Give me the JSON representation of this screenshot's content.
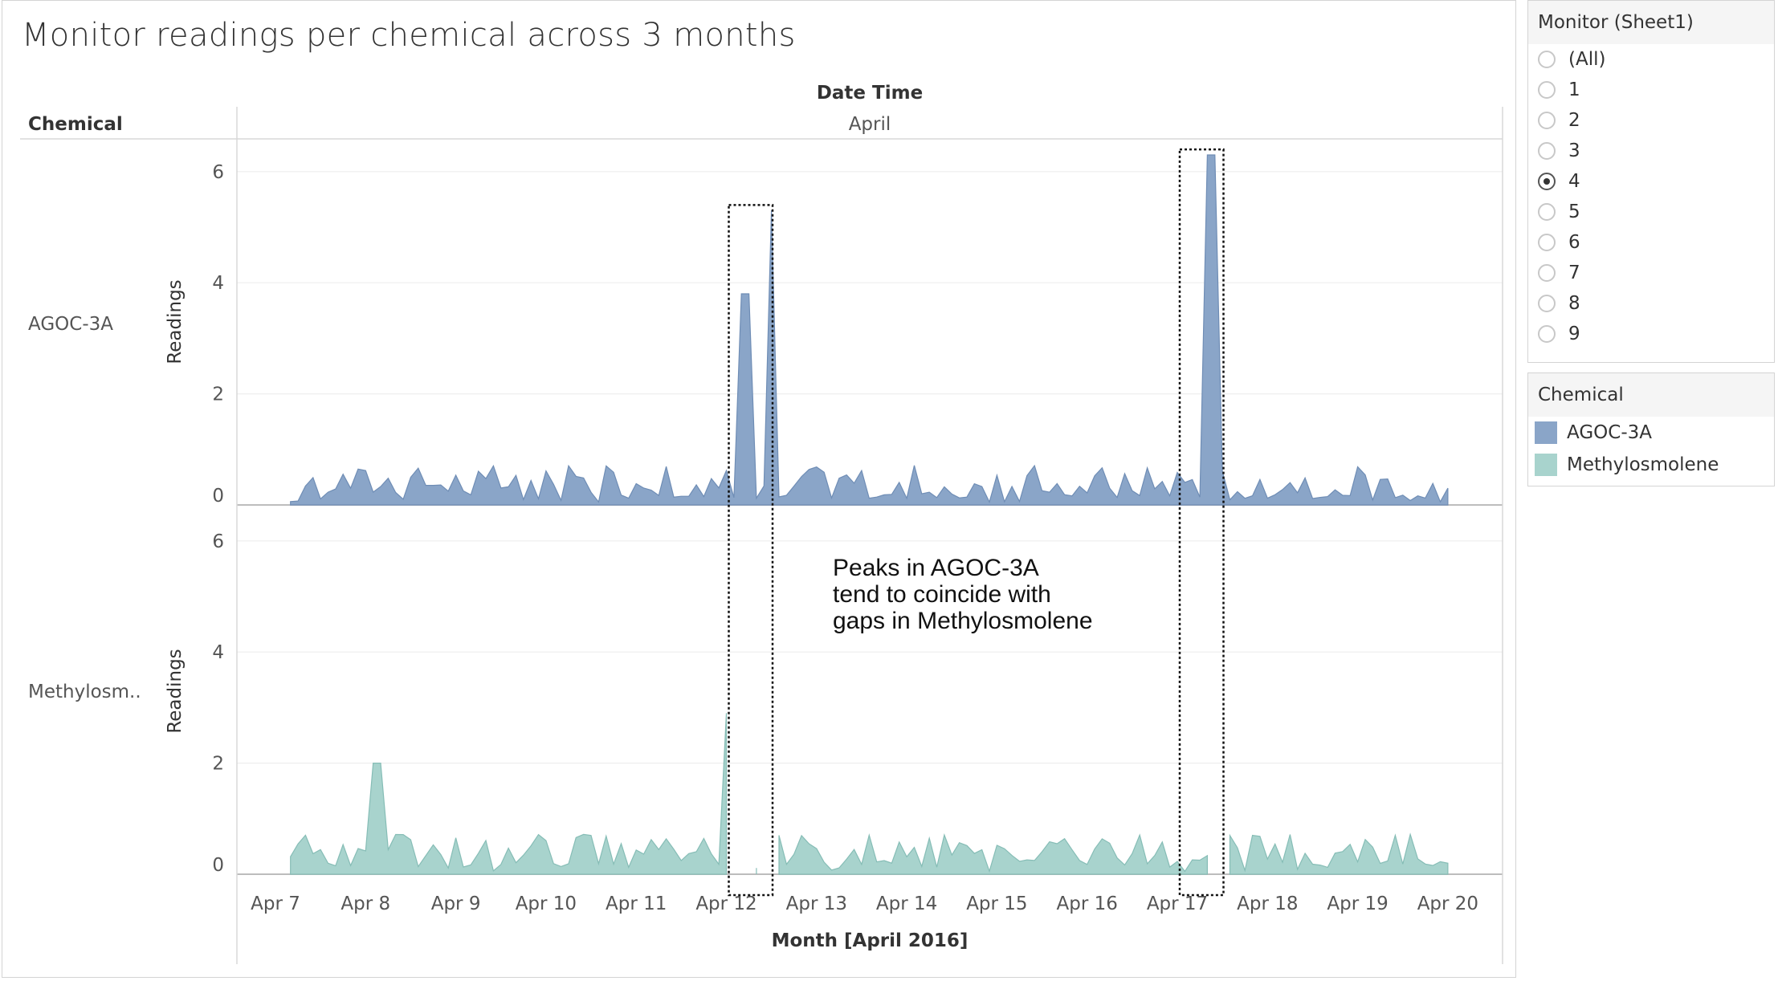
{
  "sheet": {
    "title": "Monitor readings per chemical across 3 months"
  },
  "chart_data": {
    "type": "area",
    "title": "Monitor readings per chemical across 3 months",
    "column_header_title": "Date Time",
    "column_header_value": "April",
    "row_header_title": "Chemical",
    "xlabel": "Month [April 2016]",
    "ylabel": "Readings",
    "ylim": [
      0,
      6.5
    ],
    "y_ticks": [
      0,
      2,
      4,
      6
    ],
    "x_ticks": [
      "Apr 7",
      "Apr 8",
      "Apr 9",
      "Apr 10",
      "Apr 11",
      "Apr 12",
      "Apr 13",
      "Apr 14",
      "Apr 15",
      "Apr 16",
      "Apr 17",
      "Apr 18",
      "Apr 19",
      "Apr 20"
    ],
    "x_range": [
      "2016-04-07",
      "2016-04-20"
    ],
    "x_data_start": "2016-04-07T04:00",
    "x_data_end": "2016-04-20T00:00",
    "panels": [
      {
        "name": "AGOC-3A",
        "row_label": "AGOC-3A",
        "color": "#8aa5c8",
        "stroke": "#6f8db5",
        "peaks": [
          {
            "x": "2016-04-12T05:00",
            "y": 3.8
          },
          {
            "x": "2016-04-12T12:00",
            "y": 5.3
          },
          {
            "x": "2016-04-17T09:00",
            "y": 6.3
          }
        ],
        "gaps": [],
        "baseline_range": [
          0,
          0.8
        ]
      },
      {
        "name": "Methylosmolene",
        "row_label": "Methylosm..",
        "color": "#a8d3cd",
        "stroke": "#86bdb6",
        "peaks": [
          {
            "x": "2016-04-08T03:00",
            "y": 2.0
          },
          {
            "x": "2016-04-12T00:00",
            "y": 2.9
          }
        ],
        "gaps": [
          [
            "2016-04-12T02:00",
            "2016-04-12T07:00"
          ],
          [
            "2016-04-12T10:00",
            "2016-04-12T13:00"
          ],
          [
            "2016-04-17T10:00",
            "2016-04-17T13:00"
          ]
        ],
        "baseline_range": [
          0,
          0.8
        ]
      }
    ],
    "annotation": "Peaks in AGOC-3A\ntend to coincide with\ngaps in Methylosmolene",
    "highlight_boxes": [
      {
        "x_start": "2016-04-12T00:00",
        "x_end": "2016-04-12T14:00",
        "y_top": 5.4
      },
      {
        "x_start": "2016-04-17T00:00",
        "x_end": "2016-04-17T14:00",
        "y_top": 6.4
      }
    ]
  },
  "filter": {
    "title": "Monitor (Sheet1)",
    "options": [
      "(All)",
      "1",
      "2",
      "3",
      "4",
      "5",
      "6",
      "7",
      "8",
      "9"
    ],
    "selected": "4"
  },
  "legend": {
    "title": "Chemical",
    "items": [
      {
        "label": "AGOC-3A",
        "color": "#8aa5c8"
      },
      {
        "label": "Methylosmolene",
        "color": "#a8d3cd"
      }
    ]
  }
}
